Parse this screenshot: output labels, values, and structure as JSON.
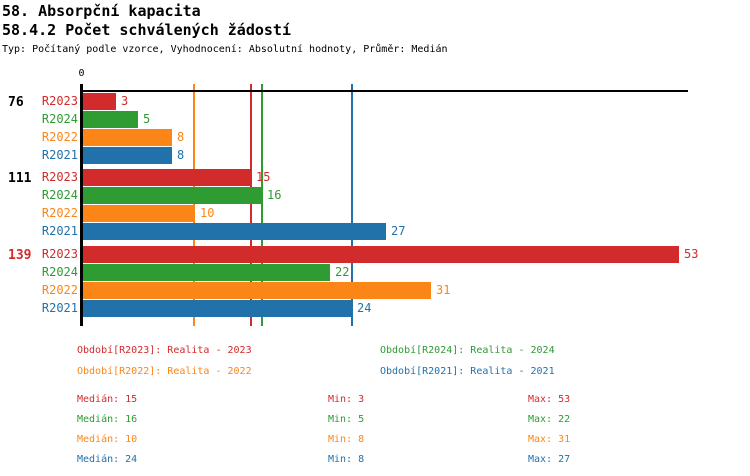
{
  "header": {
    "title1": "58. Absorpční kapacita",
    "title2": "58.4.2 Počet schválených žádostí",
    "info": "Typ: Počítaný podle vzorce, Vyhodnocení: Absolutní hodnoty, Průměr: Medián"
  },
  "chart_data": {
    "type": "bar",
    "orientation": "horizontal",
    "title": "58.4.2 Počet schválených žádostí",
    "origin_label": "0",
    "xlim": [
      0,
      54
    ],
    "grid": false,
    "series": [
      {
        "name": "R2023",
        "color": "#d22b2b",
        "median": 15,
        "min": 3,
        "max": 53
      },
      {
        "name": "R2024",
        "color": "#2e9b33",
        "median": 16,
        "min": 5,
        "max": 22
      },
      {
        "name": "R2022",
        "color": "#fb8617",
        "median": 10,
        "min": 8,
        "max": 31
      },
      {
        "name": "R2021",
        "color": "#2172ab",
        "median": 24,
        "min": 8,
        "max": 27
      }
    ],
    "groups": [
      {
        "label": "76",
        "label_color": "#000000",
        "values": [
          3,
          5,
          8,
          8
        ]
      },
      {
        "label": "111",
        "label_color": "#000000",
        "values": [
          15,
          16,
          10,
          27
        ]
      },
      {
        "label": "139",
        "label_color": "#d22b2b",
        "values": [
          53,
          22,
          31,
          24
        ]
      }
    ],
    "median_lines": [
      {
        "series": "R2023",
        "value": 15,
        "color": "#d22b2b"
      },
      {
        "series": "R2024",
        "value": 16,
        "color": "#2e9b33"
      },
      {
        "series": "R2022",
        "value": 10,
        "color": "#fb8617"
      },
      {
        "series": "R2021",
        "value": 24,
        "color": "#2172ab"
      }
    ]
  },
  "legend": {
    "items": [
      {
        "text": "Období[R2023]: Realita - 2023",
        "color": "#d22b2b"
      },
      {
        "text": "Období[R2024]: Realita - 2024",
        "color": "#2e9b33"
      },
      {
        "text": "Období[R2022]: Realita - 2022",
        "color": "#fb8617"
      },
      {
        "text": "Období[R2021]: Realita - 2021",
        "color": "#2172ab"
      }
    ]
  },
  "stats": {
    "rows": [
      {
        "color": "#d22b2b",
        "median": "Medián: 15",
        "min": "Min: 3",
        "max": "Max: 53"
      },
      {
        "color": "#2e9b33",
        "median": "Medián: 16",
        "min": "Min: 5",
        "max": "Max: 22"
      },
      {
        "color": "#fb8617",
        "median": "Medián: 10",
        "min": "Min: 8",
        "max": "Max: 31"
      },
      {
        "color": "#2172ab",
        "median": "Medián: 24",
        "min": "Min: 8",
        "max": "Max: 27"
      }
    ]
  }
}
